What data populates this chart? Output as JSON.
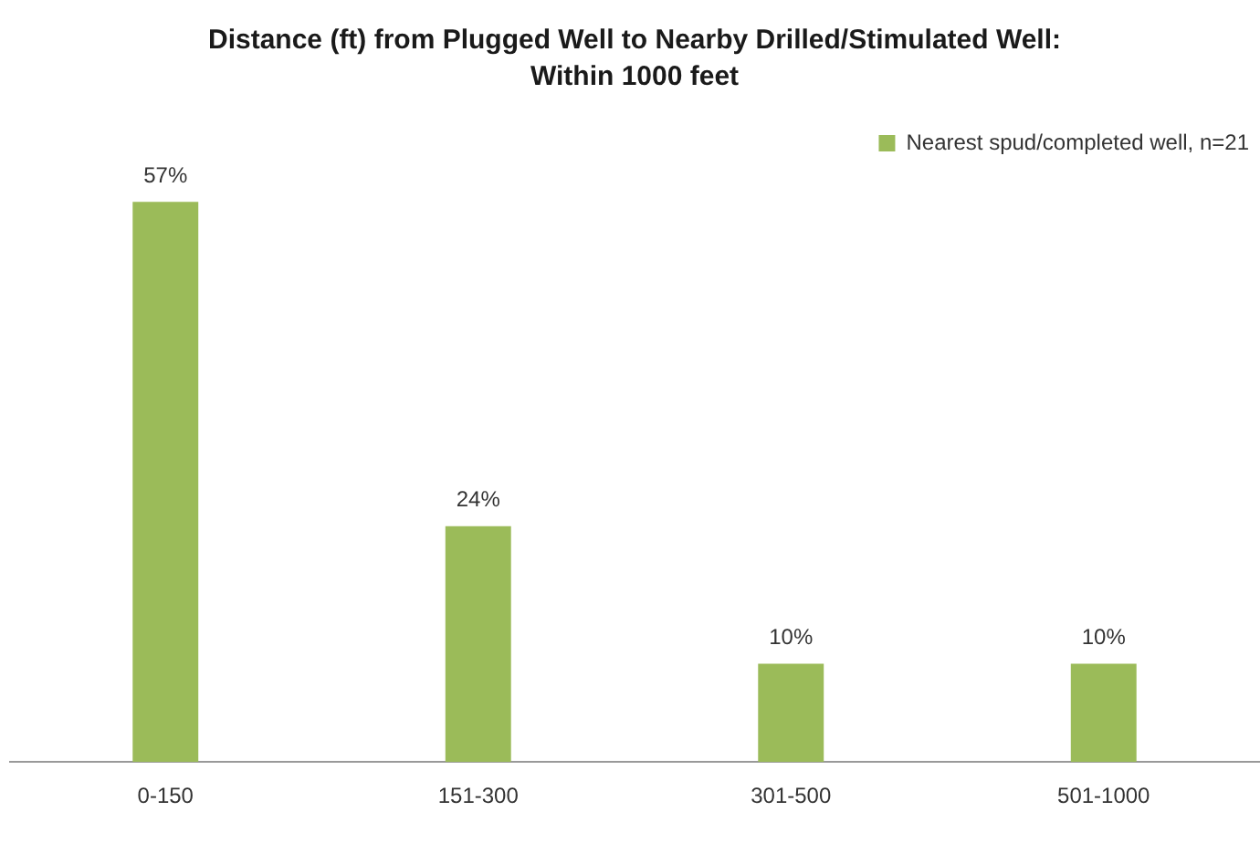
{
  "chart_data": {
    "type": "bar",
    "title": "Distance (ft) from Plugged Well to Nearby Drilled/Stimulated Well:\nWithin 1000 feet",
    "categories": [
      "0-150",
      "151-300",
      "301-500",
      "501-1000"
    ],
    "series": [
      {
        "name": "Nearest spud/completed well, n=21",
        "color": "#9bbb59",
        "values": [
          57,
          24,
          10,
          10
        ],
        "value_labels": [
          "57%",
          "24%",
          "10%",
          "10%"
        ]
      }
    ],
    "legend": "top right"
  }
}
